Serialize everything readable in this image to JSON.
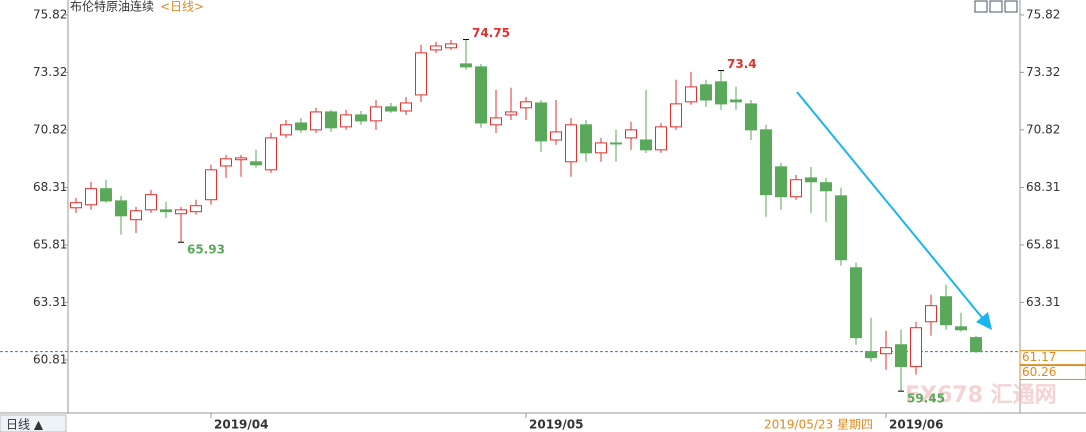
{
  "chart_data": {
    "type": "candlestick",
    "title": "布伦特原油连续",
    "subtitle": "<日线>",
    "tab": "日线 ▲",
    "watermark": "FX678 汇通网",
    "crosshair_label": "2019/05/23 星期四",
    "up_color": "#e03030",
    "down_color": "#5aa85a",
    "ylim": [
      58.5,
      76.47
    ],
    "yticks": [
      60.81,
      63.31,
      65.81,
      68.31,
      70.82,
      73.32,
      75.82
    ],
    "price_labels": [
      61.17,
      60.26
    ],
    "categories": [
      null,
      null,
      null,
      null,
      null,
      null,
      null,
      null,
      null,
      "2019/04",
      null,
      null,
      null,
      null,
      null,
      null,
      null,
      null,
      null,
      null,
      null,
      null,
      null,
      null,
      null,
      null,
      null,
      null,
      null,
      null,
      "2019/05",
      null,
      null,
      null,
      null,
      null,
      null,
      null,
      null,
      null,
      null,
      null,
      null,
      null,
      null,
      null,
      null,
      null,
      null,
      null,
      null,
      null,
      null,
      null,
      "2019/06",
      null,
      null,
      null,
      null,
      null,
      null
    ],
    "open": [
      67.43,
      67.56,
      68.26,
      67.73,
      66.91,
      67.34,
      67.34,
      67.17,
      67.26,
      67.78,
      69.25,
      69.52,
      69.43,
      69.08,
      70.6,
      71.12,
      70.82,
      71.6,
      70.95,
      71.47,
      71.21,
      71.82,
      71.64,
      72.34,
      74.3,
      74.39,
      73.69,
      73.56,
      71.04,
      71.47,
      71.78,
      71.99,
      70.38,
      69.43,
      71.04,
      69.82,
      70.25,
      70.47,
      70.38,
      69.95,
      70.95,
      72.04,
      72.78,
      72.91,
      72.12,
      71.95,
      70.82,
      69.21,
      67.91,
      68.73,
      68.52,
      67.95,
      64.82,
      61.17,
      61.08,
      61.47,
      60.52,
      62.47,
      63.56,
      62.25,
      61.78
    ],
    "high": [
      67.86,
      68.56,
      68.65,
      67.95,
      67.47,
      68.21,
      67.69,
      67.47,
      67.78,
      69.3,
      69.73,
      69.73,
      69.95,
      70.69,
      71.25,
      71.34,
      71.78,
      71.69,
      71.69,
      71.64,
      72.12,
      71.99,
      72.25,
      74.52,
      74.65,
      74.73,
      74.75,
      73.69,
      72.56,
      72.65,
      72.25,
      72.12,
      72.12,
      71.34,
      71.25,
      70.47,
      70.82,
      71.17,
      72.56,
      71.12,
      73.0,
      73.34,
      73.0,
      73.4,
      72.69,
      72.12,
      71.04,
      69.39,
      68.86,
      69.21,
      68.73,
      68.3,
      65.04,
      62.65,
      62.08,
      62.12,
      62.47,
      63.65,
      64.08,
      62.86,
      61.86
    ],
    "low": [
      67.21,
      67.34,
      67.65,
      66.26,
      66.34,
      67.21,
      66.99,
      65.93,
      67.13,
      67.56,
      68.73,
      68.78,
      69.17,
      68.95,
      70.47,
      70.69,
      70.69,
      70.73,
      70.82,
      71.04,
      70.82,
      71.56,
      71.47,
      72.04,
      74.17,
      74.3,
      73.43,
      70.91,
      70.69,
      71.25,
      71.25,
      69.86,
      70.17,
      68.78,
      69.43,
      69.43,
      69.43,
      69.95,
      69.82,
      69.82,
      70.82,
      71.91,
      71.82,
      71.69,
      71.69,
      70.38,
      67.04,
      67.34,
      67.78,
      67.21,
      66.82,
      64.91,
      61.47,
      60.73,
      60.38,
      59.45,
      60.17,
      61.86,
      62.12,
      62.04,
      61.12
    ],
    "close": [
      67.65,
      68.26,
      67.73,
      67.08,
      67.3,
      68.0,
      67.26,
      67.34,
      67.52,
      69.08,
      69.56,
      69.6,
      69.3,
      70.47,
      71.04,
      70.82,
      71.6,
      70.91,
      71.47,
      71.21,
      71.82,
      71.64,
      71.99,
      74.17,
      74.47,
      74.56,
      73.56,
      71.12,
      71.34,
      71.6,
      72.04,
      70.34,
      70.73,
      71.04,
      69.82,
      70.25,
      70.21,
      70.82,
      69.95,
      70.95,
      71.95,
      72.69,
      72.12,
      71.95,
      72.04,
      70.82,
      68.0,
      67.91,
      68.65,
      68.56,
      68.17,
      65.17,
      61.78,
      60.91,
      61.34,
      60.52,
      62.21,
      63.17,
      62.34,
      62.12,
      61.17
    ],
    "annotations": [
      {
        "value": 74.75,
        "index": 26,
        "color": "#e03030"
      },
      {
        "value": 73.4,
        "index": 43,
        "color": "#e03030"
      },
      {
        "value": 65.93,
        "index": 7,
        "color": "#5aa85a"
      },
      {
        "value": 59.45,
        "index": 55,
        "color": "#5aa85a"
      }
    ]
  }
}
